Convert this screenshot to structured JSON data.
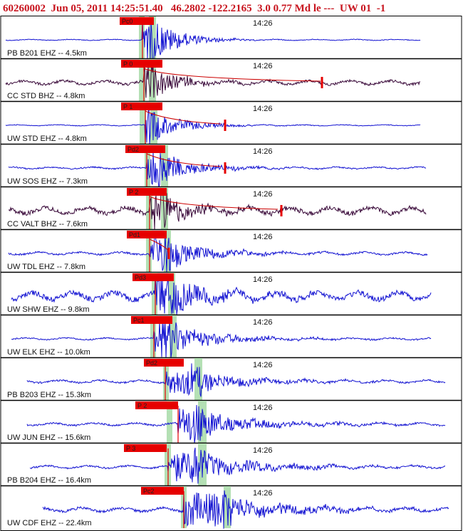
{
  "header": {
    "event_id": "60260002",
    "datetime": "Jun 05, 2011 14:25:51.40",
    "latitude": "46.2802",
    "longitude": "-122.2165",
    "depth": "3.0",
    "magnitude": "0.77 Md",
    "flags": "le ---",
    "network_source": "UW 01",
    "suffix": "-1"
  },
  "time_label": "14:26",
  "colors": {
    "header": "#c8141e",
    "trace_ehz": "#1414d2",
    "trace_bhz": "#3a0a3a",
    "pick": "#e60000",
    "window": "#b4e0b4",
    "coda": "#cc0000",
    "separator": "#000000"
  },
  "traces": [
    {
      "label": "PB B201 EHZ -- 4.5km",
      "pick": "Pc0",
      "type": "EHZ"
    },
    {
      "label": "CC STD BHZ -- 4.8km",
      "pick": "P 0",
      "type": "BHZ"
    },
    {
      "label": "UW STD EHZ -- 4.8km",
      "pick": "P 1",
      "type": "EHZ"
    },
    {
      "label": "UW SOS EHZ -- 7.3km",
      "pick": "Pd2",
      "type": "EHZ"
    },
    {
      "label": "CC VALT BHZ -- 7.6km",
      "pick": "P 2",
      "type": "BHZ"
    },
    {
      "label": "UW TDL EHZ -- 7.8km",
      "pick": "Pd1",
      "type": "EHZ"
    },
    {
      "label": "UW SHW EHZ -- 9.8km",
      "pick": "Pd3",
      "type": "EHZ"
    },
    {
      "label": "UW ELK EHZ -- 10.0km",
      "pick": "Pc1",
      "type": "EHZ"
    },
    {
      "label": "PB B203 EHZ -- 15.3km",
      "pick": "Pd2",
      "type": "EHZ"
    },
    {
      "label": "UW JUN EHZ -- 15.6km",
      "pick": "P 2",
      "type": "EHZ"
    },
    {
      "label": "PB B204 EHZ -- 16.4km",
      "pick": "P 3",
      "type": "EHZ"
    },
    {
      "label": "UW CDF EHZ -- 22.4km",
      "pick": "Pc2",
      "type": "EHZ"
    }
  ]
}
